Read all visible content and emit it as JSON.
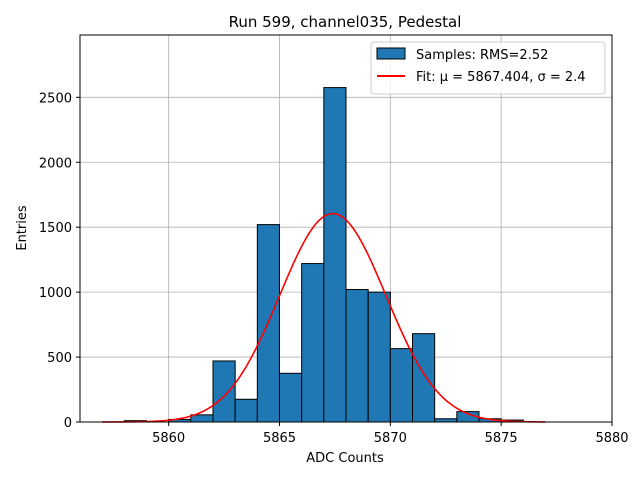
{
  "chart_data": {
    "type": "bar",
    "title": "Run 599, channel035, Pedestal",
    "xlabel": "ADC Counts",
    "ylabel": "Entries",
    "xlim": [
      5856,
      5880
    ],
    "ylim": [
      0,
      2980
    ],
    "xticks": [
      5860,
      5865,
      5870,
      5875,
      5880
    ],
    "yticks": [
      0,
      500,
      1000,
      1500,
      2000,
      2500
    ],
    "grid": true,
    "bin_width": 1,
    "bin_left_edges": [
      5857,
      5858,
      5859,
      5860,
      5861,
      5862,
      5863,
      5864,
      5865,
      5866,
      5867,
      5868,
      5869,
      5870,
      5871,
      5872,
      5873,
      5874,
      5875,
      5876,
      5877,
      5878
    ],
    "values": [
      0,
      10,
      0,
      20,
      55,
      470,
      175,
      1520,
      375,
      1220,
      2575,
      1020,
      1000,
      565,
      680,
      25,
      80,
      25,
      15,
      0,
      0,
      0
    ],
    "fit": {
      "mu": 5867.404,
      "sigma": 2.4,
      "amplitude": 1605,
      "x_range": [
        5857,
        5877
      ]
    },
    "legend": {
      "position": "top-right",
      "entries": [
        {
          "label": "Samples: RMS=2.52",
          "type": "histogram"
        },
        {
          "label": "Fit: μ = 5867.404, σ = 2.4",
          "type": "line"
        }
      ]
    },
    "colors": {
      "bars": "#1f77b4",
      "bar_edge": "#000000",
      "fit": "#ff0000",
      "grid": "#b0b0b0"
    }
  }
}
